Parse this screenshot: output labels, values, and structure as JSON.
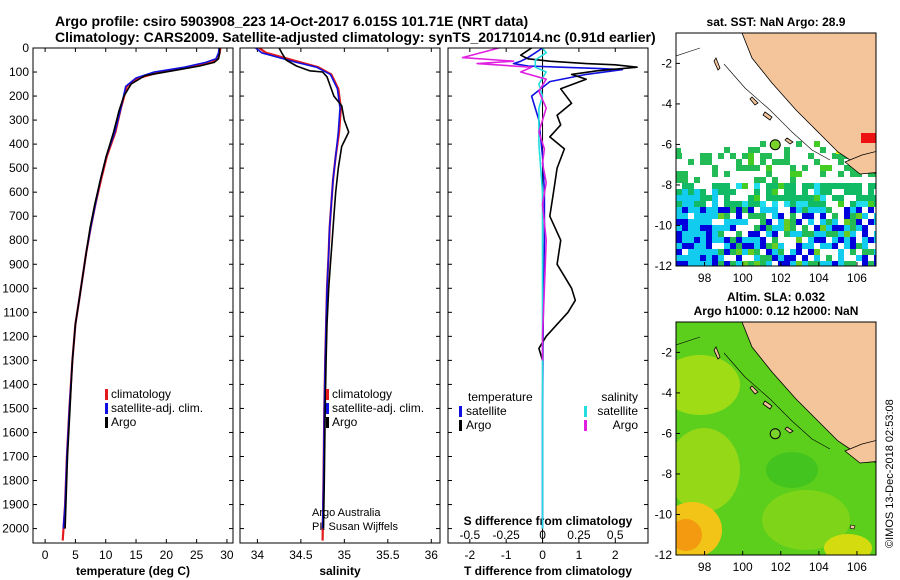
{
  "titles": {
    "line1": "Argo profile: csiro 5903908_223 14-Oct-2017 6.015S 101.71E (NRT data)",
    "line2": "Climatology: CARS2009. Satellite-adjusted climatology: synTS_20171014.nc (0.91d earlier)"
  },
  "credit": {
    "line1": "Argo Australia",
    "line2": "PI: Susan Wijffels"
  },
  "watermark": "©IMOS 13-Dec-2018 02:53:08",
  "colors": {
    "climatology": "#e41a1c",
    "satellite": "#1010e0",
    "argo": "#000000",
    "sat_s": "#22dddd",
    "argo_s": "#e020e0",
    "land": "#f4c59a",
    "coast": "#000000"
  },
  "chart_data": [
    {
      "type": "line",
      "id": "temperature",
      "xlabel": "temperature (deg C)",
      "ylabel": "",
      "xlim": [
        -2,
        31
      ],
      "ylim": [
        2060,
        0
      ],
      "xticks": [
        0,
        5,
        10,
        15,
        20,
        25,
        30
      ],
      "yticks": [
        0,
        100,
        200,
        300,
        400,
        500,
        600,
        700,
        800,
        900,
        1000,
        1100,
        1200,
        1300,
        1400,
        1500,
        1600,
        1700,
        1800,
        1900,
        2000
      ],
      "legend": [
        "climatology",
        "satellite-adj. clim.",
        "Argo"
      ],
      "legend_position": "lower-right",
      "series": [
        {
          "name": "climatology",
          "color": "#e41a1c",
          "x": [
            28.9,
            28.8,
            28.5,
            27.5,
            24,
            19,
            15.5,
            13.5,
            12.5,
            11.6,
            10.2,
            9.2,
            8.3,
            7.5,
            6.8,
            6.2,
            5.6,
            5.0,
            4.5,
            4.0,
            3.6,
            3.3,
            2.9
          ],
          "y": [
            0,
            20,
            45,
            60,
            80,
            100,
            125,
            160,
            250,
            350,
            450,
            550,
            650,
            750,
            850,
            950,
            1050,
            1150,
            1300,
            1500,
            1700,
            1900,
            2050
          ]
        },
        {
          "name": "satellite-adj. clim.",
          "color": "#1010e0",
          "x": [
            28.7,
            28.6,
            28.2,
            26.5,
            23,
            18,
            15.0,
            13.3,
            12.5,
            11.5,
            10.1,
            9.1,
            8.3,
            7.5,
            6.8,
            6.2,
            5.6,
            5.0,
            4.5,
            4.0,
            3.6,
            3.3,
            3.0
          ],
          "y": [
            0,
            20,
            45,
            60,
            80,
            100,
            125,
            160,
            250,
            350,
            450,
            550,
            650,
            750,
            850,
            950,
            1050,
            1150,
            1300,
            1500,
            1700,
            1900,
            2000
          ]
        },
        {
          "name": "Argo",
          "color": "#000000",
          "x": [
            28.8,
            28.8,
            28.6,
            27.9,
            25.5,
            21,
            16.5,
            14.2,
            13.0,
            12.2,
            11.3,
            10.1,
            9.1,
            8.2,
            7.4,
            6.8,
            6.2,
            5.6,
            5.0,
            4.5,
            4.1,
            3.7,
            3.3
          ],
          "y": [
            0,
            20,
            45,
            60,
            75,
            95,
            115,
            150,
            200,
            260,
            350,
            450,
            550,
            650,
            750,
            850,
            950,
            1050,
            1150,
            1300,
            1500,
            1700,
            2000
          ]
        }
      ]
    },
    {
      "type": "line",
      "id": "salinity",
      "xlabel": "salinity",
      "xlim": [
        33.8,
        36.1
      ],
      "ylim": [
        2060,
        0
      ],
      "xticks": [
        34,
        34.5,
        35,
        35.5,
        36
      ],
      "legend": [
        "climatology",
        "satellite-adj. clim.",
        "Argo"
      ],
      "legend_position": "lower-right",
      "series": [
        {
          "name": "climatology",
          "color": "#e41a1c",
          "x": [
            34.02,
            34.1,
            34.3,
            34.5,
            34.7,
            34.85,
            34.93,
            34.96,
            34.94,
            34.9,
            34.87,
            34.85,
            34.83,
            34.82,
            34.8,
            34.79,
            34.78,
            34.77,
            34.76,
            34.75
          ],
          "y": [
            0,
            20,
            40,
            60,
            80,
            110,
            170,
            250,
            350,
            450,
            550,
            650,
            750,
            850,
            1000,
            1150,
            1300,
            1500,
            1800,
            2050
          ]
        },
        {
          "name": "satellite-adj. clim.",
          "color": "#1010e0",
          "x": [
            33.98,
            34.05,
            34.25,
            34.45,
            34.68,
            34.84,
            34.92,
            34.95,
            34.93,
            34.9,
            34.87,
            34.85,
            34.83,
            34.82,
            34.8,
            34.79,
            34.78,
            34.77,
            34.76,
            34.75
          ],
          "y": [
            0,
            20,
            40,
            60,
            80,
            110,
            170,
            250,
            350,
            450,
            550,
            650,
            750,
            850,
            1000,
            1150,
            1300,
            1500,
            1800,
            2000
          ]
        },
        {
          "name": "Argo",
          "color": "#000000",
          "x": [
            34.25,
            34.28,
            34.33,
            34.45,
            34.6,
            34.75,
            34.8,
            34.82,
            34.88,
            34.97,
            35.0,
            35.05,
            34.97,
            34.93,
            34.9,
            34.88,
            34.86,
            34.84,
            34.82,
            34.8,
            34.79,
            34.78,
            34.77,
            34.76
          ],
          "y": [
            0,
            20,
            50,
            75,
            95,
            100,
            120,
            140,
            200,
            240,
            300,
            350,
            410,
            500,
            600,
            700,
            800,
            900,
            1000,
            1150,
            1300,
            1500,
            1800,
            2000
          ]
        }
      ]
    },
    {
      "type": "line",
      "id": "difference",
      "xlabel": "T difference from climatology",
      "xlabel2": "S difference from climatology",
      "xlim": [
        -2.6,
        2.9
      ],
      "ylim": [
        2060,
        0
      ],
      "xticks": [
        -2,
        -1,
        0,
        1,
        2
      ],
      "xticks_s": [
        "-0.5",
        "-0.25",
        "0",
        "0.25",
        "0.5"
      ],
      "xticks_s_positions": [
        -2,
        -1,
        0,
        1,
        2
      ],
      "legend_temperature": [
        "temperature",
        "satellite",
        "Argo"
      ],
      "legend_salinity": [
        "salinity",
        "satellite",
        "Argo"
      ],
      "legend_position": "lower",
      "series": [
        {
          "name": "satellite (temperature)",
          "color": "#1010e0",
          "x": [
            0,
            -0.2,
            -0.4,
            -0.6,
            -0.8,
            -0.4,
            0.5,
            1.5,
            2.2,
            1.2,
            0.2,
            -0.3,
            -0.1,
            0,
            0.05,
            0.05,
            0.02,
            0,
            0
          ],
          "y": [
            0,
            20,
            40,
            55,
            65,
            75,
            80,
            85,
            90,
            110,
            140,
            200,
            300,
            450,
            600,
            800,
            1100,
            1500,
            2000
          ]
        },
        {
          "name": "Argo (temperature)",
          "color": "#000000",
          "x": [
            -0.3,
            -0.6,
            -0.4,
            0.2,
            1.2,
            2.0,
            2.6,
            1.5,
            0.8,
            1.2,
            0.5,
            0.8,
            0.4,
            0.5,
            0.2,
            0.6,
            0.4,
            0.3,
            0.2,
            0.5,
            0.4,
            0.6,
            0.8,
            0.9,
            0.7,
            0.4,
            0.1,
            -0.1,
            0
          ],
          "y": [
            0,
            30,
            45,
            55,
            65,
            70,
            80,
            95,
            110,
            130,
            170,
            230,
            280,
            320,
            370,
            420,
            500,
            600,
            700,
            800,
            900,
            950,
            1000,
            1050,
            1100,
            1150,
            1200,
            1250,
            1300
          ]
        },
        {
          "name": "satellite (salinity)",
          "color": "#22dddd",
          "x": [
            0,
            0.1,
            -0.2,
            -0.2,
            0.1,
            -0.1,
            0,
            -0.1,
            -0.1,
            0,
            0,
            0,
            0
          ],
          "y": [
            0,
            20,
            50,
            80,
            100,
            150,
            200,
            250,
            400,
            600,
            1000,
            1500,
            2000
          ]
        },
        {
          "name": "Argo (salinity)",
          "color": "#e020e0",
          "x": [
            -1.2,
            -2.2,
            -0.8,
            -1.8,
            -0.3,
            -0.6,
            0.1,
            -0.1,
            0.1,
            -0.1,
            0.05,
            0,
            0.1,
            0,
            0.1,
            0.05,
            0,
            0
          ],
          "y": [
            0,
            40,
            55,
            65,
            80,
            100,
            130,
            180,
            250,
            350,
            420,
            480,
            560,
            650,
            800,
            1000,
            1200,
            1300
          ]
        }
      ]
    },
    {
      "type": "heatmap",
      "id": "sst-map",
      "title": "sat. SST: NaN Argo: 28.9",
      "xlim": [
        96.5,
        107
      ],
      "ylim": [
        -12,
        -0.5
      ],
      "xticks": [
        98,
        100,
        102,
        104,
        106
      ],
      "yticks": [
        -2,
        -4,
        -6,
        -8,
        -10,
        -12
      ],
      "argo_position": {
        "lon": 101.71,
        "lat": -6.015
      }
    },
    {
      "type": "heatmap",
      "id": "sla-map",
      "title": "Altim. SLA: 0.032",
      "title2": "Argo h1000: 0.12 h2000: NaN",
      "xlim": [
        96.5,
        107
      ],
      "ylim": [
        -12,
        -0.5
      ],
      "xticks": [
        98,
        100,
        102,
        104,
        106
      ],
      "yticks": [
        -2,
        -4,
        -6,
        -8,
        -10,
        -12
      ],
      "argo_position": {
        "lon": 101.71,
        "lat": -6.015
      }
    }
  ]
}
